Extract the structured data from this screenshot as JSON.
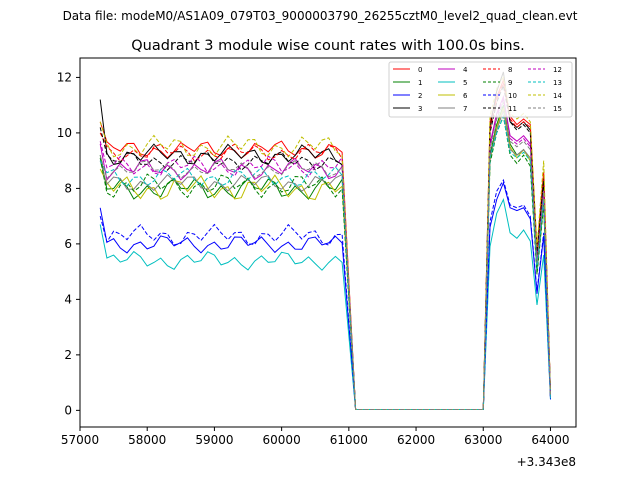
{
  "suptitle": "Data file: modeM0/AS1A09_079T03_9000003790_26255cztM0_level2_quad_clean.evt",
  "chart_data": {
    "type": "line",
    "title": "Quadrant 3 module wise count rates with 100.0s bins.",
    "xlabel": "",
    "ylabel": "",
    "x_offset_label": "+3.343e8",
    "xlim": [
      57000,
      64380
    ],
    "ylim": [
      -0.6,
      12.7
    ],
    "xticks": [
      57000,
      58000,
      59000,
      60000,
      61000,
      62000,
      63000,
      64000
    ],
    "yticks": [
      0,
      2,
      4,
      6,
      8,
      10,
      12
    ],
    "grid": false,
    "legend": {
      "placement": "top-right",
      "columns": 4
    },
    "segments": {
      "x_start": 57300,
      "x_step": 100,
      "n_pre": 37,
      "x_gap_start": 61100,
      "x_gap_end": 63000,
      "x_post": [
        63100,
        63200,
        63300,
        63400,
        63500,
        63600,
        63700,
        63800,
        63900,
        64000,
        64050
      ]
    },
    "series": [
      {
        "name": "0",
        "color": "#ff0000",
        "dash": false,
        "base": 9.4,
        "amp": 0.35,
        "start": 10.4,
        "post": [
          10.4,
          11.3,
          11.9,
          10.6,
          10.3,
          10.5,
          10.3,
          5.8,
          8.6,
          0.6
        ]
      },
      {
        "name": "1",
        "color": "#008000",
        "dash": false,
        "base": 8.0,
        "amp": 0.45,
        "start": 9.2,
        "post": [
          9.2,
          10.3,
          11.0,
          9.6,
          9.2,
          9.4,
          9.0,
          5.0,
          7.5,
          0.5
        ]
      },
      {
        "name": "2",
        "color": "#0000ff",
        "dash": false,
        "base": 6.0,
        "amp": 0.35,
        "start": 7.3,
        "post": [
          6.6,
          7.6,
          8.2,
          7.3,
          7.2,
          7.3,
          6.9,
          4.2,
          6.3,
          0.4
        ]
      },
      {
        "name": "3",
        "color": "#000000",
        "dash": false,
        "base": 9.2,
        "amp": 0.4,
        "start": 11.2,
        "post": [
          10.2,
          11.5,
          12.2,
          10.4,
          10.2,
          10.4,
          10.1,
          5.6,
          8.4,
          0.6
        ]
      },
      {
        "name": "4",
        "color": "#bf00bf",
        "dash": false,
        "base": 8.7,
        "amp": 0.4,
        "start": 9.6,
        "post": [
          9.6,
          10.7,
          11.3,
          9.9,
          9.7,
          9.9,
          9.6,
          5.3,
          7.9,
          0.5
        ]
      },
      {
        "name": "5",
        "color": "#00bfbf",
        "dash": false,
        "base": 5.4,
        "amp": 0.35,
        "start": 6.7,
        "post": [
          5.9,
          7.1,
          7.6,
          6.4,
          6.2,
          6.5,
          6.1,
          3.8,
          5.6,
          0.4
        ]
      },
      {
        "name": "6",
        "color": "#bfbf00",
        "dash": false,
        "base": 8.0,
        "amp": 0.5,
        "start": 8.7,
        "post": [
          9.0,
          10.2,
          10.9,
          9.5,
          9.1,
          9.4,
          9.0,
          5.1,
          7.6,
          0.5
        ]
      },
      {
        "name": "7",
        "color": "#808080",
        "dash": false,
        "base": 8.2,
        "amp": 0.35,
        "start": 9.0,
        "post": [
          9.1,
          10.1,
          10.8,
          9.4,
          9.2,
          9.4,
          9.1,
          5.2,
          7.7,
          0.5
        ]
      },
      {
        "name": "8",
        "color": "#ff0000",
        "dash": true,
        "base": 9.3,
        "amp": 0.35,
        "start": 10.0,
        "post": [
          10.1,
          11.2,
          11.8,
          10.5,
          10.2,
          10.4,
          10.2,
          5.7,
          8.5,
          0.6
        ]
      },
      {
        "name": "9",
        "color": "#008000",
        "dash": true,
        "base": 8.1,
        "amp": 0.45,
        "start": 9.1,
        "post": [
          8.9,
          10.0,
          10.6,
          9.2,
          8.9,
          9.2,
          8.8,
          4.9,
          7.4,
          0.5
        ]
      },
      {
        "name": "10",
        "color": "#0000ff",
        "dash": true,
        "base": 6.3,
        "amp": 0.4,
        "start": 7.0,
        "post": [
          6.8,
          7.9,
          8.3,
          7.4,
          7.3,
          7.4,
          7.0,
          4.3,
          6.4,
          0.4
        ]
      },
      {
        "name": "11",
        "color": "#000000",
        "dash": true,
        "base": 9.0,
        "amp": 0.35,
        "start": 10.2,
        "post": [
          10.0,
          11.1,
          11.7,
          10.4,
          10.1,
          10.3,
          10.0,
          5.6,
          8.3,
          0.6
        ]
      },
      {
        "name": "12",
        "color": "#bf00bf",
        "dash": true,
        "base": 8.8,
        "amp": 0.4,
        "start": 9.7,
        "post": [
          9.5,
          10.6,
          11.2,
          9.8,
          9.6,
          9.8,
          9.5,
          5.3,
          7.9,
          0.5
        ]
      },
      {
        "name": "13",
        "color": "#00bfbf",
        "dash": true,
        "base": 8.4,
        "amp": 0.4,
        "start": 9.0,
        "post": [
          9.1,
          10.0,
          10.6,
          9.3,
          9.1,
          9.3,
          9.0,
          5.1,
          7.6,
          0.5
        ]
      },
      {
        "name": "14",
        "color": "#bfbf00",
        "dash": true,
        "base": 9.5,
        "amp": 0.45,
        "start": 10.4,
        "post": [
          10.6,
          11.6,
          12.0,
          10.7,
          10.5,
          10.7,
          10.4,
          5.9,
          9.0,
          0.6
        ]
      },
      {
        "name": "15",
        "color": "#808080",
        "dash": true,
        "base": 8.7,
        "amp": 0.35,
        "start": 9.2,
        "post": [
          9.4,
          10.5,
          11.1,
          9.7,
          9.5,
          9.7,
          9.4,
          5.3,
          7.9,
          0.5
        ]
      }
    ]
  }
}
